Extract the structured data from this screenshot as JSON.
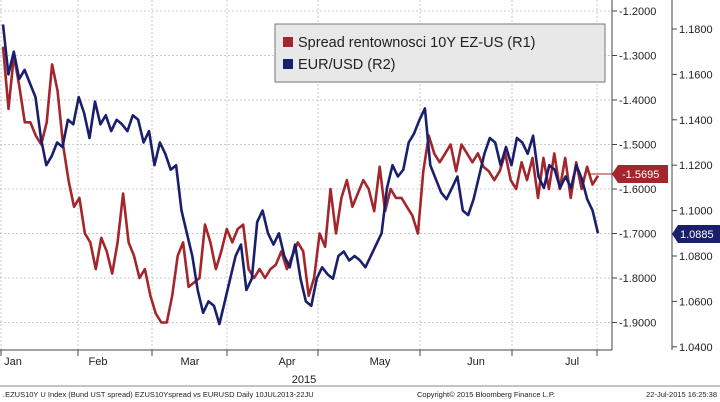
{
  "chart_data": {
    "type": "line",
    "year_label": "2015",
    "months": [
      "Jan",
      "Feb",
      "Mar",
      "Apr",
      "May",
      "Jun",
      "Jul"
    ],
    "left_axis": {
      "ticks": [
        -1.2,
        -1.3,
        -1.4,
        -1.5,
        -1.6,
        -1.7,
        -1.8,
        -1.9
      ],
      "tick_labels": [
        "-1.2000",
        "-1.3000",
        "-1.4000",
        "-1.5000",
        "-1.6000",
        "-1.7000",
        "-1.8000",
        "-1.9000"
      ],
      "range": [
        -1.2,
        -1.9
      ]
    },
    "right_axis": {
      "ticks": [
        1.18,
        1.16,
        1.14,
        1.12,
        1.1,
        1.08,
        1.06,
        1.04
      ],
      "tick_labels": [
        "1.1800",
        "1.1600",
        "1.1400",
        "1.1200",
        "1.1000",
        "1.0800",
        "1.0600",
        "1.0400"
      ],
      "range": [
        1.18,
        1.04
      ]
    },
    "grid": true,
    "legend_position": "top-right",
    "colors": {
      "spread": "#a3262c",
      "eurusd": "#1a1f6b",
      "grid": "#bbbbbb"
    },
    "series": [
      {
        "name": "Spread rentownosci 10Y EZ-US (R1)",
        "axis": "left",
        "last_value_label": "-1.5695",
        "values": [
          -1.28,
          -1.42,
          -1.3,
          -1.37,
          -1.45,
          -1.45,
          -1.48,
          -1.5,
          -1.45,
          -1.32,
          -1.38,
          -1.5,
          -1.58,
          -1.64,
          -1.62,
          -1.7,
          -1.72,
          -1.78,
          -1.71,
          -1.74,
          -1.79,
          -1.72,
          -1.61,
          -1.72,
          -1.75,
          -1.8,
          -1.78,
          -1.84,
          -1.88,
          -1.9,
          -1.9,
          -1.84,
          -1.75,
          -1.72,
          -1.82,
          -1.81,
          -1.8,
          -1.68,
          -1.72,
          -1.78,
          -1.74,
          -1.69,
          -1.72,
          -1.69,
          -1.68,
          -1.78,
          -1.8,
          -1.78,
          -1.8,
          -1.78,
          -1.77,
          -1.74,
          -1.78,
          -1.75,
          -1.72,
          -1.74,
          -1.84,
          -1.8,
          -1.7,
          -1.73,
          -1.6,
          -1.7,
          -1.62,
          -1.58,
          -1.64,
          -1.61,
          -1.58,
          -1.6,
          -1.65,
          -1.55,
          -1.65,
          -1.6,
          -1.62,
          -1.62,
          -1.64,
          -1.66,
          -1.7,
          -1.56,
          -1.48,
          -1.52,
          -1.54,
          -1.52,
          -1.5,
          -1.56,
          -1.5,
          -1.52,
          -1.54,
          -1.52,
          -1.55,
          -1.56,
          -1.58,
          -1.56,
          -1.52,
          -1.58,
          -1.6,
          -1.54,
          -1.58,
          -1.53,
          -1.62,
          -1.53,
          -1.6,
          -1.52,
          -1.6,
          -1.53,
          -1.62,
          -1.54,
          -1.6,
          -1.55,
          -1.59,
          -1.57
        ]
      },
      {
        "name": "EUR/USD (R2)",
        "axis": "right",
        "last_value_label": "1.0885",
        "values": [
          1.182,
          1.16,
          1.17,
          1.158,
          1.162,
          1.156,
          1.15,
          1.132,
          1.12,
          1.124,
          1.13,
          1.128,
          1.14,
          1.138,
          1.15,
          1.143,
          1.132,
          1.148,
          1.138,
          1.142,
          1.135,
          1.14,
          1.138,
          1.135,
          1.142,
          1.14,
          1.13,
          1.135,
          1.12,
          1.13,
          1.125,
          1.118,
          1.12,
          1.1,
          1.09,
          1.08,
          1.065,
          1.055,
          1.06,
          1.058,
          1.05,
          1.06,
          1.07,
          1.08,
          1.085,
          1.065,
          1.07,
          1.095,
          1.1,
          1.09,
          1.085,
          1.09,
          1.08,
          1.075,
          1.085,
          1.07,
          1.06,
          1.058,
          1.07,
          1.075,
          1.072,
          1.07,
          1.08,
          1.082,
          1.078,
          1.08,
          1.078,
          1.075,
          1.08,
          1.085,
          1.09,
          1.11,
          1.12,
          1.115,
          1.118,
          1.13,
          1.134,
          1.14,
          1.145,
          1.12,
          1.114,
          1.108,
          1.105,
          1.11,
          1.115,
          1.1,
          1.098,
          1.105,
          1.115,
          1.125,
          1.132,
          1.13,
          1.12,
          1.128,
          1.12,
          1.132,
          1.13,
          1.125,
          1.133,
          1.115,
          1.11,
          1.12,
          1.118,
          1.11,
          1.115,
          1.11,
          1.12,
          1.114,
          1.105,
          1.1,
          1.09
        ]
      }
    ]
  },
  "footer": {
    "left": ".EZUS10Y U Index (Bund UST spread) EZUS10Yspread vs EURUSD  Daily 10JUL2013-22JU",
    "center": "Copyright© 2015 Bloomberg Finance L.P.",
    "right": "22-Jul-2015 16:25:38"
  }
}
